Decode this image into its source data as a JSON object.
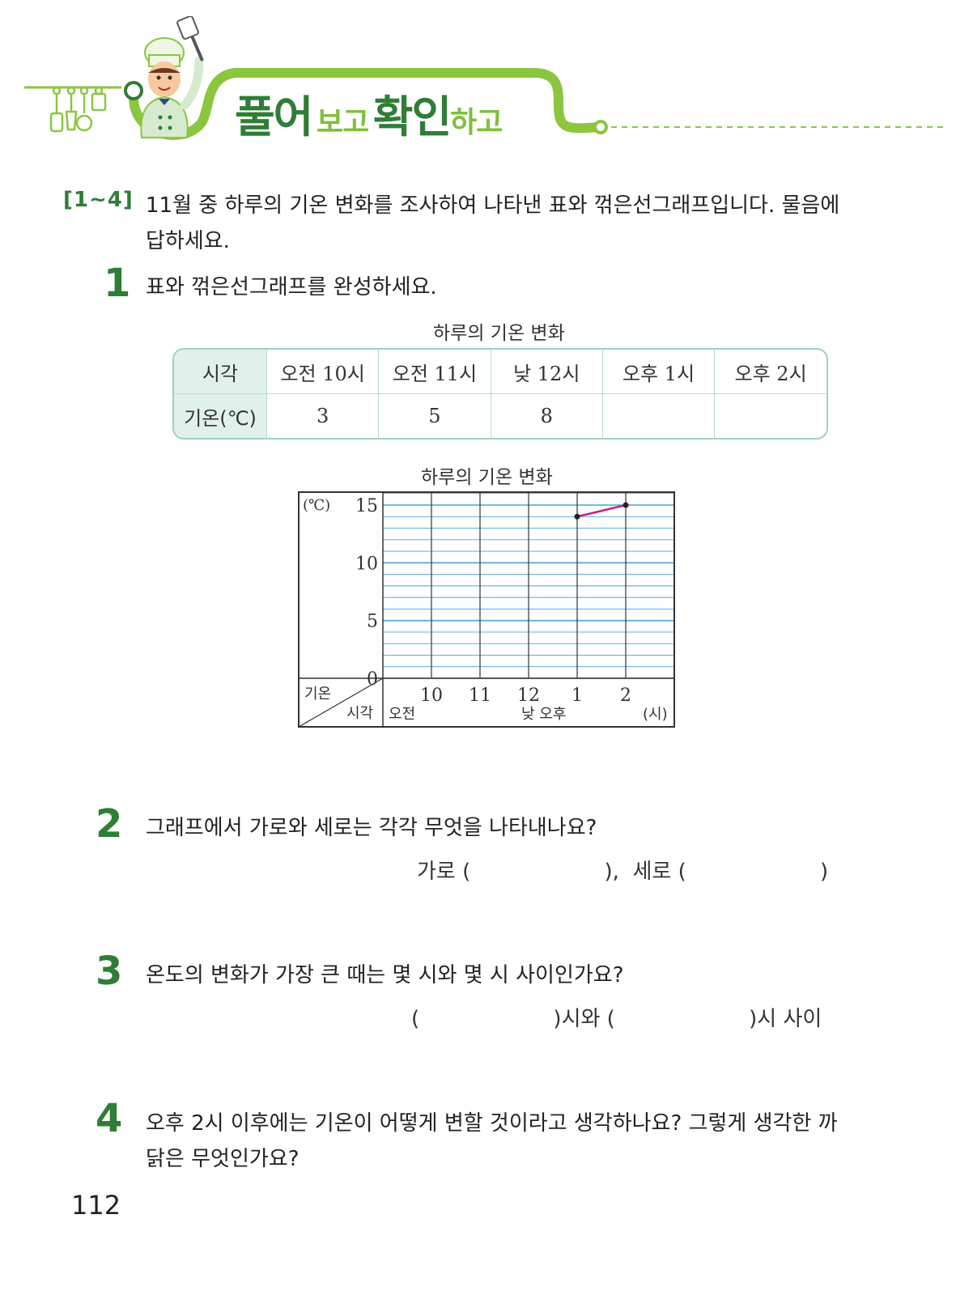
{
  "header": {
    "title_part1": "풀어",
    "title_part2": "보고",
    "title_part3": "확인",
    "title_part4": "하고",
    "accent_dark": "#2f7d36",
    "accent_light": "#8cc63f",
    "illustration": "chef-with-spatula",
    "utensil_icons": [
      "whisk-icon",
      "ladle-icon",
      "grater-icon",
      "spatula-icon"
    ]
  },
  "intro": {
    "range": "[1~4]",
    "text": "11월 중 하루의 기온 변화를 조사하여 나타낸 표와 꺾은선그래프입니다. 물음에 답하세요."
  },
  "q1": {
    "number": "1",
    "text": "표와 꺾은선그래프를 완성하세요."
  },
  "table": {
    "caption": "하루의 기온 변화",
    "header_row": [
      "시각",
      "오전 10시",
      "오전 11시",
      "낮 12시",
      "오후 1시",
      "오후 2시"
    ],
    "value_row": [
      "기온(℃)",
      "3",
      "5",
      "8",
      "",
      ""
    ]
  },
  "chart_data": {
    "type": "line",
    "title": "하루의 기온 변화",
    "unit_label": "(℃)",
    "ylim": [
      0,
      16
    ],
    "y_ticks": [
      "0",
      "5",
      "10",
      "15"
    ],
    "x_categories": [
      "10",
      "11",
      "12",
      "1",
      "2"
    ],
    "x_group_labels": [
      "오전",
      "낮 오후"
    ],
    "x_unit": "(시)",
    "corner_top": "기온",
    "corner_bottom": "시각",
    "grid": true,
    "series": [
      {
        "values": [
          null,
          null,
          null,
          14,
          15
        ],
        "color": "#c0207a"
      }
    ]
  },
  "q2": {
    "number": "2",
    "text": "그래프에서 가로와 세로는 각각 무엇을 나타내나요?",
    "answer": "가로 (                    ),  세로 (                    )"
  },
  "q3": {
    "number": "3",
    "text": "온도의 변화가 가장 큰 때는 몇 시와 몇 시 사이인가요?",
    "answer": "(                    )시와 (                    )시 사이"
  },
  "q4": {
    "number": "4",
    "text": "오후 2시 이후에는 기온이 어떻게 변할 것이라고 생각하나요? 그렇게 생각한 까닭은 무엇인가요?"
  },
  "page_number": "112"
}
